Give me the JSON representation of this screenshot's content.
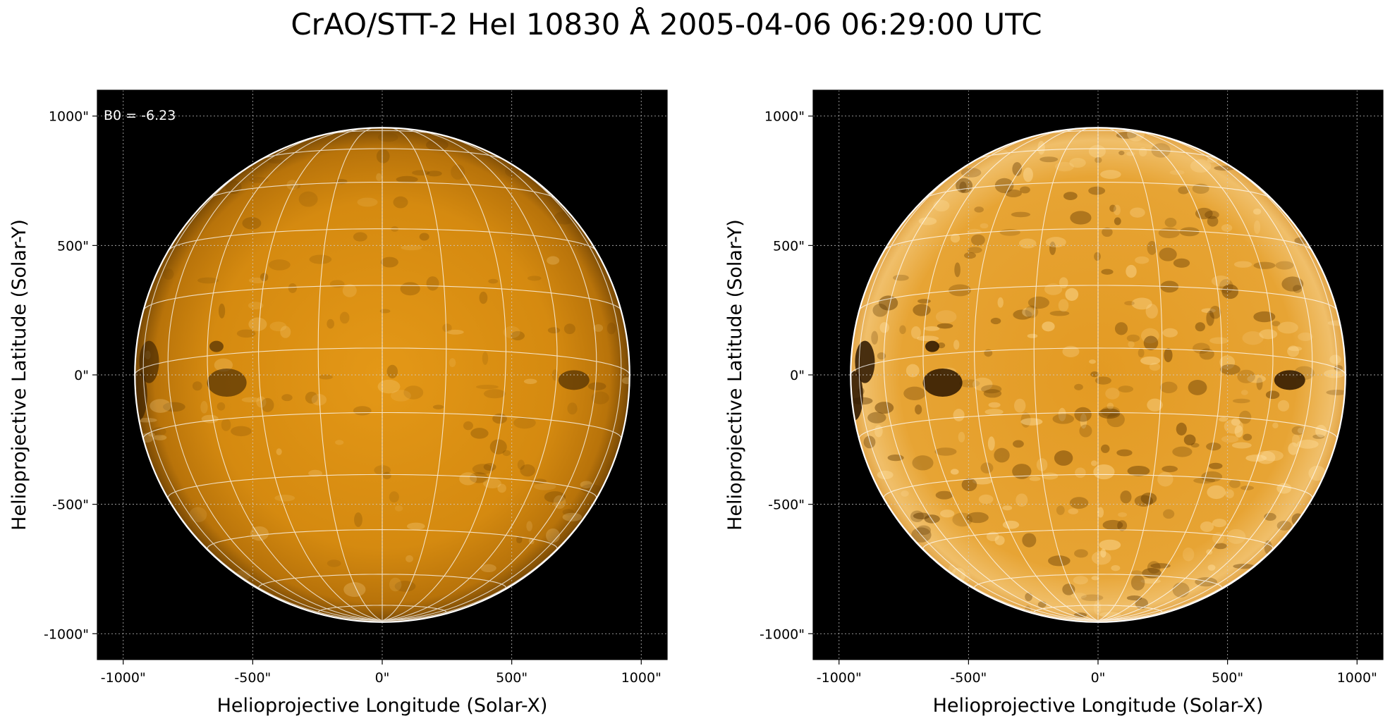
{
  "title": "CrAO/STT-2 HeI 10830 Å 2005-04-06 06:29:00 UTC",
  "colors": {
    "background": "#000000",
    "disk_base": "#d98a0f",
    "disk_bright": "#f2c36a",
    "grid": "#ffffff"
  },
  "panels": [
    {
      "id": "left",
      "annotation": "B0 = -6.23",
      "xlabel": "Helioprojective Longitude (Solar-X)",
      "ylabel": "Helioprojective Latitude (Solar-Y)",
      "xticks": [
        "-1000\"",
        "-500\"",
        "0\"",
        "500\"",
        "1000\""
      ],
      "yticks": [
        "1000\"",
        "500\"",
        "0\"",
        "-500\"",
        "-1000\""
      ],
      "contrast": "low"
    },
    {
      "id": "right",
      "annotation": "",
      "xlabel": "Helioprojective Longitude (Solar-X)",
      "ylabel": "Helioprojective Latitude (Solar-Y)",
      "xticks": [
        "-1000\"",
        "-500\"",
        "0\"",
        "500\"",
        "1000\""
      ],
      "yticks": [
        "1000\"",
        "500\"",
        "0\"",
        "-500\"",
        "-1000\""
      ],
      "contrast": "high"
    }
  ],
  "map": {
    "x_range": [
      -1100,
      1100
    ],
    "y_range": [
      -1100,
      1100
    ],
    "tick_values": [
      -1000,
      -500,
      0,
      500,
      1000
    ],
    "solar_radius_arcsec": 955,
    "b0_deg": -6.23,
    "grid_step_deg": 15
  }
}
